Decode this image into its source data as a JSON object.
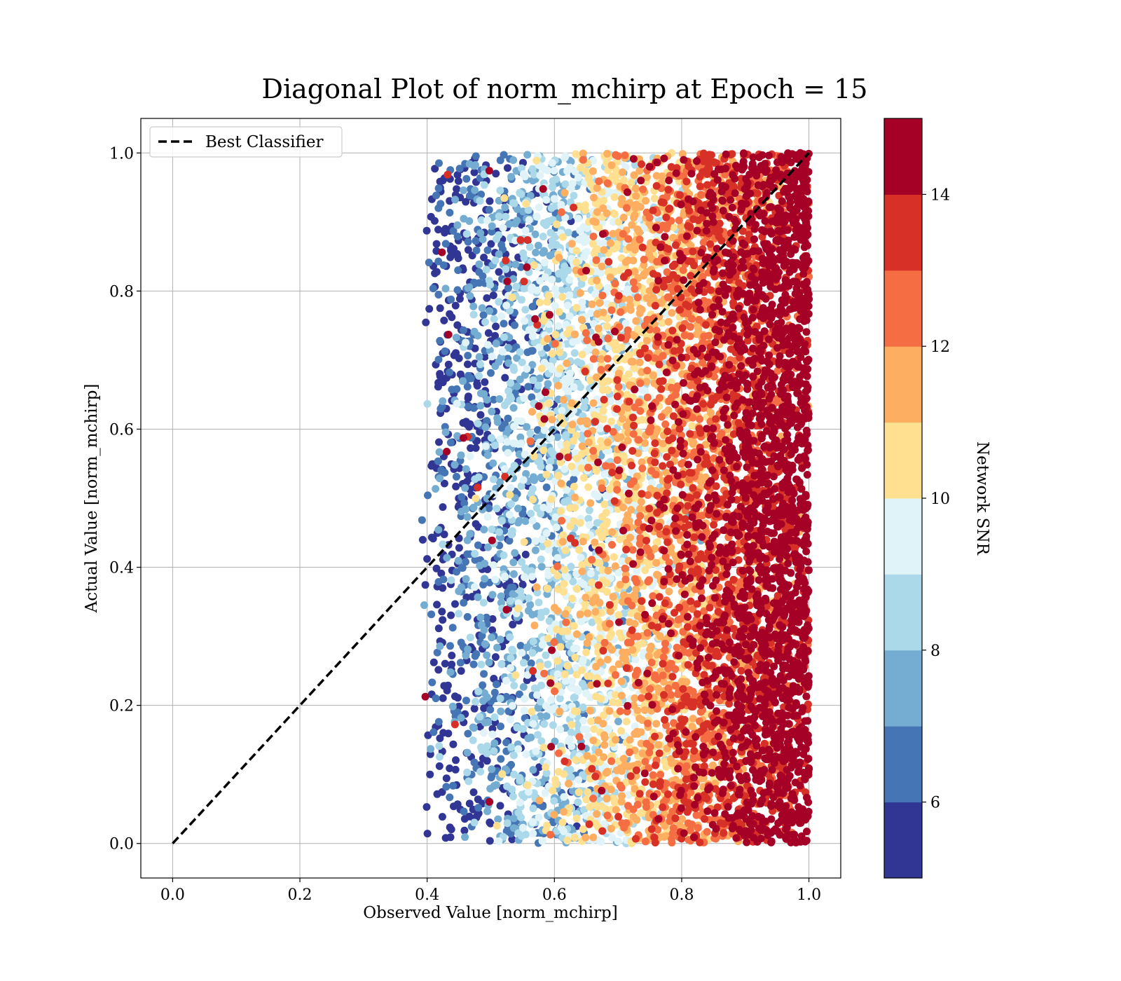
{
  "chart_data": {
    "type": "scatter",
    "title": "Diagonal Plot of norm_mchirp at Epoch = 15",
    "xlabel": "Observed Value [norm_mchirp]",
    "ylabel": "Actual Value [norm_mchirp]",
    "xlim": [
      -0.05,
      1.05
    ],
    "ylim": [
      -0.05,
      1.05
    ],
    "xticks": [
      "0.0",
      "0.2",
      "0.4",
      "0.6",
      "0.8",
      "1.0"
    ],
    "yticks": [
      "0.0",
      "0.2",
      "0.4",
      "0.6",
      "0.8",
      "1.0"
    ],
    "grid": true,
    "legend": {
      "position": "upper left",
      "entries": [
        {
          "label": "Best Classifier",
          "style": "black dashed line"
        }
      ]
    },
    "reference_line": {
      "name": "Best Classifier",
      "x": [
        0.0,
        1.0
      ],
      "y": [
        0.0,
        1.0
      ],
      "color": "#000000",
      "dash": "dashed"
    },
    "scatter_description": {
      "x_range": [
        0.39,
        1.0
      ],
      "y_range": [
        0.0,
        1.0
      ],
      "color_variable": "Network SNR",
      "trend": "SNR increases with observed value; points at low observed values are blue (SNR ~5-8), high observed values dark red (SNR ~14-15)"
    },
    "colorbar": {
      "label": "Network SNR",
      "range": [
        5,
        15
      ],
      "ticks": [
        "6",
        "8",
        "10",
        "12",
        "14"
      ],
      "tick_values": [
        6,
        8,
        10,
        12,
        14
      ],
      "colormap": "RdYlBu_r",
      "colors": [
        "#313695",
        "#4575b4",
        "#74add1",
        "#abd9e9",
        "#e0f3f8",
        "#fee090",
        "#fdae61",
        "#f46d43",
        "#d73027",
        "#a50026"
      ]
    }
  }
}
